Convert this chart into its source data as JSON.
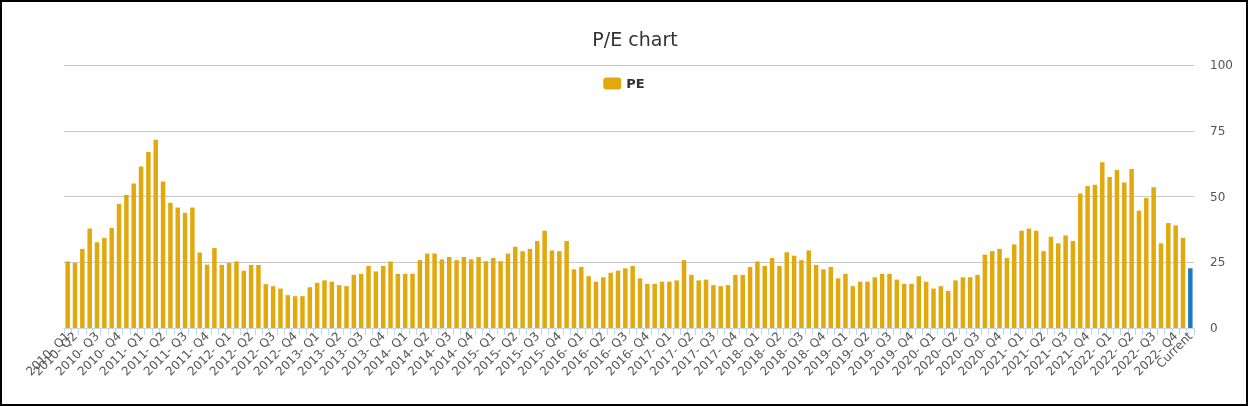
{
  "chart_data": {
    "type": "bar",
    "title": "P/E chart",
    "categories": [
      "2010- Q1",
      "2010- Q2",
      null,
      null,
      "2010- Q3",
      null,
      null,
      "2010- Q4",
      null,
      null,
      "2011- Q1",
      null,
      null,
      "2011- Q2",
      null,
      null,
      "2011- Q3",
      null,
      null,
      "2011- Q4",
      null,
      null,
      "2012- Q1",
      null,
      null,
      "2012- Q2",
      null,
      null,
      "2012- Q3",
      null,
      null,
      "2012- Q4",
      null,
      null,
      "2013- Q1",
      null,
      null,
      "2013- Q2",
      null,
      null,
      "2013- Q3",
      null,
      null,
      "2013- Q4",
      null,
      null,
      "2014- Q1",
      null,
      null,
      "2014- Q2",
      null,
      null,
      "2014- Q3",
      null,
      null,
      "2014- Q4",
      null,
      null,
      "2015- Q1",
      null,
      null,
      "2015- Q2",
      null,
      null,
      "2015- Q3",
      null,
      null,
      "2015- Q4",
      null,
      null,
      "2016- Q1",
      null,
      null,
      "2016- Q2",
      null,
      null,
      "2016- Q3",
      null,
      null,
      "2016- Q4",
      null,
      null,
      "2017- Q1",
      null,
      null,
      "2017- Q2",
      null,
      null,
      "2017- Q3",
      null,
      null,
      "2017- Q4",
      null,
      null,
      "2018- Q1",
      null,
      null,
      "2018- Q2",
      null,
      null,
      "2018- Q3",
      null,
      null,
      "2018- Q4",
      null,
      null,
      "2019- Q1",
      null,
      null,
      "2019- Q2",
      null,
      null,
      "2019- Q3",
      null,
      null,
      "2019- Q4",
      null,
      null,
      "2020- Q1",
      null,
      null,
      "2020- Q2",
      null,
      null,
      "2020- Q3",
      null,
      null,
      "2020- Q4",
      null,
      null,
      "2021- Q1",
      null,
      null,
      "2021- Q2",
      null,
      null,
      "2021- Q3",
      null,
      null,
      "2021- Q4",
      null,
      null,
      "2022- Q1",
      null,
      null,
      "2022- Q2",
      null,
      null,
      "2022- Q3",
      null,
      null,
      "2022- Q4",
      null,
      "Current"
    ],
    "series": [
      {
        "name": "PE",
        "color": "#e2a90f",
        "values": [
          25.3,
          24.7,
          30.1,
          37.8,
          32.6,
          34.3,
          38.1,
          47.2,
          50.6,
          54.9,
          61.4,
          66.9,
          71.6,
          55.7,
          47.6,
          45.8,
          43.8,
          45.8,
          28.7,
          24.1,
          30.4,
          24.0,
          24.7,
          25.3,
          21.8,
          24.0,
          24.0,
          16.7,
          15.9,
          15.0,
          12.5,
          12.1,
          12.1,
          15.5,
          17.2,
          18.1,
          17.6,
          16.3,
          15.9,
          20.2,
          20.6,
          23.6,
          21.5,
          23.6,
          25.3,
          20.6,
          20.6,
          20.6,
          25.8,
          28.3,
          28.3,
          26.1,
          27.0,
          25.8,
          27.0,
          26.1,
          27.0,
          25.4,
          26.6,
          25.4,
          28.3,
          30.9,
          29.2,
          30.1,
          33.1,
          37.0,
          29.5,
          29.2,
          33.1,
          22.3,
          23.2,
          19.7,
          17.6,
          19.3,
          21.0,
          21.8,
          22.7,
          23.6,
          18.9,
          16.8,
          16.8,
          17.6,
          17.6,
          18.1,
          25.8,
          20.2,
          18.1,
          18.4,
          16.3,
          15.9,
          16.3,
          20.2,
          20.2,
          23.2,
          25.3,
          23.6,
          26.6,
          23.6,
          28.8,
          27.5,
          25.8,
          29.5,
          24.0,
          22.3,
          23.2,
          18.9,
          20.6,
          15.9,
          17.6,
          17.6,
          19.3,
          20.6,
          20.6,
          18.4,
          16.8,
          16.8,
          19.7,
          17.6,
          15.0,
          15.9,
          14.1,
          18.1,
          19.3,
          19.3,
          20.2,
          27.9,
          29.2,
          30.1,
          26.6,
          31.8,
          37.0,
          37.8,
          37.0,
          29.2,
          34.7,
          32.2,
          35.2,
          33.1,
          51.1,
          54.0,
          54.5,
          63.0,
          57.4,
          60.1,
          55.3,
          60.5,
          44.6,
          49.4,
          53.5,
          32.2,
          39.9,
          39.0,
          34.3,
          22.7
        ],
        "colors": [
          "#e2a90f",
          "#e2a90f",
          "#e2a90f",
          "#e2a90f",
          "#e2a90f",
          "#e2a90f",
          "#e2a90f",
          "#e2a90f",
          "#e2a90f",
          "#e2a90f",
          "#e2a90f",
          "#e2a90f",
          "#e2a90f",
          "#e2a90f",
          "#e2a90f",
          "#e2a90f",
          "#e2a90f",
          "#e2a90f",
          "#e2a90f",
          "#e2a90f",
          "#e2a90f",
          "#e2a90f",
          "#e2a90f",
          "#e2a90f",
          "#e2a90f",
          "#e2a90f",
          "#e2a90f",
          "#e2a90f",
          "#e2a90f",
          "#e2a90f",
          "#e2a90f",
          "#e2a90f",
          "#e2a90f",
          "#e2a90f",
          "#e2a90f",
          "#e2a90f",
          "#e2a90f",
          "#e2a90f",
          "#e2a90f",
          "#e2a90f",
          "#e2a90f",
          "#e2a90f",
          "#e2a90f",
          "#e2a90f",
          "#e2a90f",
          "#e2a90f",
          "#e2a90f",
          "#e2a90f",
          "#e2a90f",
          "#e2a90f",
          "#e2a90f",
          "#e2a90f",
          "#e2a90f",
          "#e2a90f",
          "#e2a90f",
          "#e2a90f",
          "#e2a90f",
          "#e2a90f",
          "#e2a90f",
          "#e2a90f",
          "#e2a90f",
          "#e2a90f",
          "#e2a90f",
          "#e2a90f",
          "#e2a90f",
          "#e2a90f",
          "#e2a90f",
          "#e2a90f",
          "#e2a90f",
          "#e2a90f",
          "#e2a90f",
          "#e2a90f",
          "#e2a90f",
          "#e2a90f",
          "#e2a90f",
          "#e2a90f",
          "#e2a90f",
          "#e2a90f",
          "#e2a90f",
          "#e2a90f",
          "#e2a90f",
          "#e2a90f",
          "#e2a90f",
          "#e2a90f",
          "#e2a90f",
          "#e2a90f",
          "#e2a90f",
          "#e2a90f",
          "#e2a90f",
          "#e2a90f",
          "#e2a90f",
          "#e2a90f",
          "#e2a90f",
          "#e2a90f",
          "#e2a90f",
          "#e2a90f",
          "#e2a90f",
          "#e2a90f",
          "#e2a90f",
          "#e2a90f",
          "#e2a90f",
          "#e2a90f",
          "#e2a90f",
          "#e2a90f",
          "#e2a90f",
          "#e2a90f",
          "#e2a90f",
          "#e2a90f",
          "#e2a90f",
          "#e2a90f",
          "#e2a90f",
          "#e2a90f",
          "#e2a90f",
          "#e2a90f",
          "#e2a90f",
          "#e2a90f",
          "#e2a90f",
          "#e2a90f",
          "#e2a90f",
          "#e2a90f",
          "#e2a90f",
          "#e2a90f",
          "#e2a90f",
          "#e2a90f",
          "#e2a90f",
          "#e2a90f",
          "#e2a90f",
          "#e2a90f",
          "#e2a90f",
          "#e2a90f",
          "#e2a90f",
          "#e2a90f",
          "#e2a90f",
          "#e2a90f",
          "#e2a90f",
          "#e2a90f",
          "#e2a90f",
          "#e2a90f",
          "#e2a90f",
          "#e2a90f",
          "#e2a90f",
          "#e2a90f",
          "#e2a90f",
          "#e2a90f",
          "#e2a90f",
          "#e2a90f",
          "#e2a90f",
          "#e2a90f",
          "#e2a90f",
          "#e2a90f",
          "#e2a90f",
          "#e2a90f",
          "#e2a90f",
          "#1a7dbf"
        ]
      }
    ],
    "ylim": [
      0,
      100
    ],
    "yticks": [
      0,
      25,
      50,
      75,
      100
    ],
    "grid": "y",
    "legend": "top"
  }
}
